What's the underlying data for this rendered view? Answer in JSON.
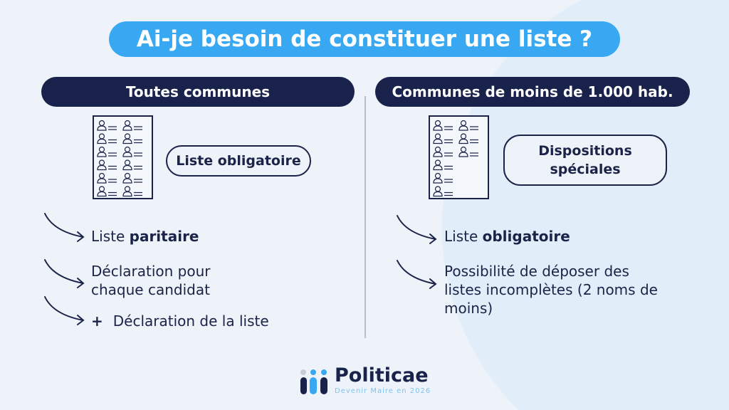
{
  "title": "Ai-je besoin de constituer une liste ?",
  "left": {
    "header": "Toutes communes",
    "pill": "Liste obligatoire",
    "items": [
      {
        "text": "Liste ",
        "bold": "paritaire"
      },
      {
        "text": "Déclaration pour chaque candidat"
      },
      {
        "plus": "+",
        "text": "Déclaration de la liste"
      }
    ]
  },
  "right": {
    "header": "Communes de moins de 1.000 hab.",
    "pill_line1": "Dispositions",
    "pill_line2": "spéciales",
    "items": [
      {
        "text": "Liste ",
        "bold": "obligatoire"
      },
      {
        "text": "Possibilité de déposer des listes incomplètes (2 noms de moins)"
      }
    ]
  },
  "logo": {
    "brand": "Politicae",
    "tagline": "Devenir Maire en 2026"
  },
  "colors": {
    "navy": "#18224a",
    "accent": "#38a8f2",
    "background": "#eef3fa"
  }
}
